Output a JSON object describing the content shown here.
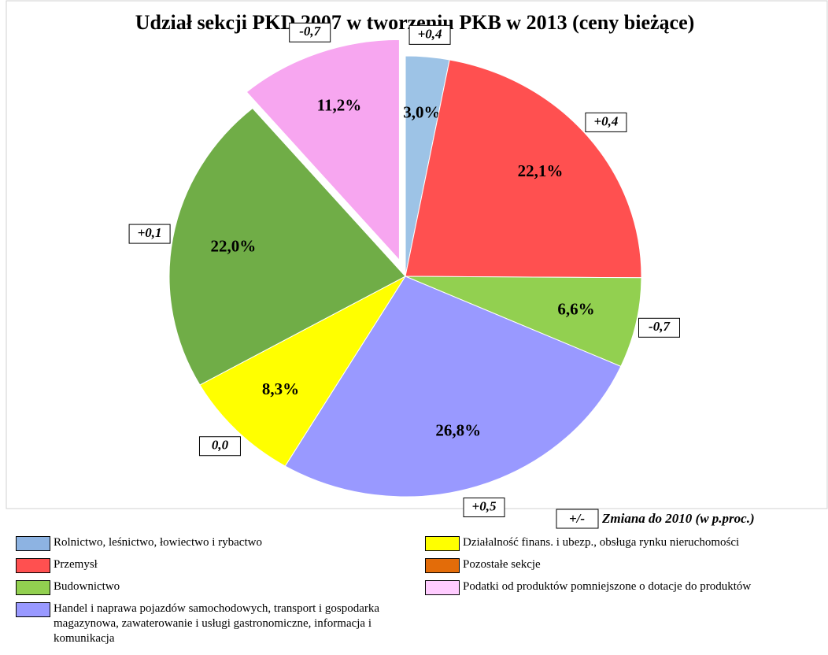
{
  "chart_data": {
    "type": "pie",
    "title": "Udział sekcji PKD 2007 w tworzeniu PKB w  2013 (ceny bieżące)",
    "categories": [
      "Rolnictwo, leśnictwo, łowiectwo i rybactwo",
      "Przemysł",
      "Budownictwo",
      "Handel i naprawa pojazdów samochodowych, transport i gospodarka magazynowa, zawaterowanie i usługi gastronomiczne, informacja i komunikacja",
      "Działalność finans. i ubezp., obsługa rynku nieruchomości",
      "Pozostałe sekcje",
      "Podatki od produktów pomniejszone o dotacje do produktów"
    ],
    "values": [
      3.0,
      22.1,
      6.6,
      26.8,
      8.3,
      22.0,
      11.2
    ],
    "value_labels": [
      "3,0%",
      "22,1%",
      "6,6%",
      "26,8%",
      "8,3%",
      "22,0%",
      "11,2%"
    ],
    "colors": [
      "#9dc3e6",
      "#ff5050",
      "#92d050",
      "#9999ff",
      "#ffff00",
      "#70ad47",
      "#f7a6f0"
    ],
    "legend_colors": [
      "#8db3e2",
      "#ff5050",
      "#92d050",
      "#9999ff",
      "#ffff00",
      "#e36c09",
      "#ffccff"
    ],
    "changes": [
      0.4,
      0.4,
      -0.7,
      0.5,
      0.0,
      0.1,
      -0.7
    ],
    "change_labels": [
      "+0,4",
      "+0,4",
      "-0,7",
      "+0,5",
      "0,0",
      "+0,1",
      "-0,7"
    ],
    "exploded": [
      6
    ],
    "change_key": "+/-",
    "change_note": "Zmiana do 2010 (w p.proc.)"
  }
}
